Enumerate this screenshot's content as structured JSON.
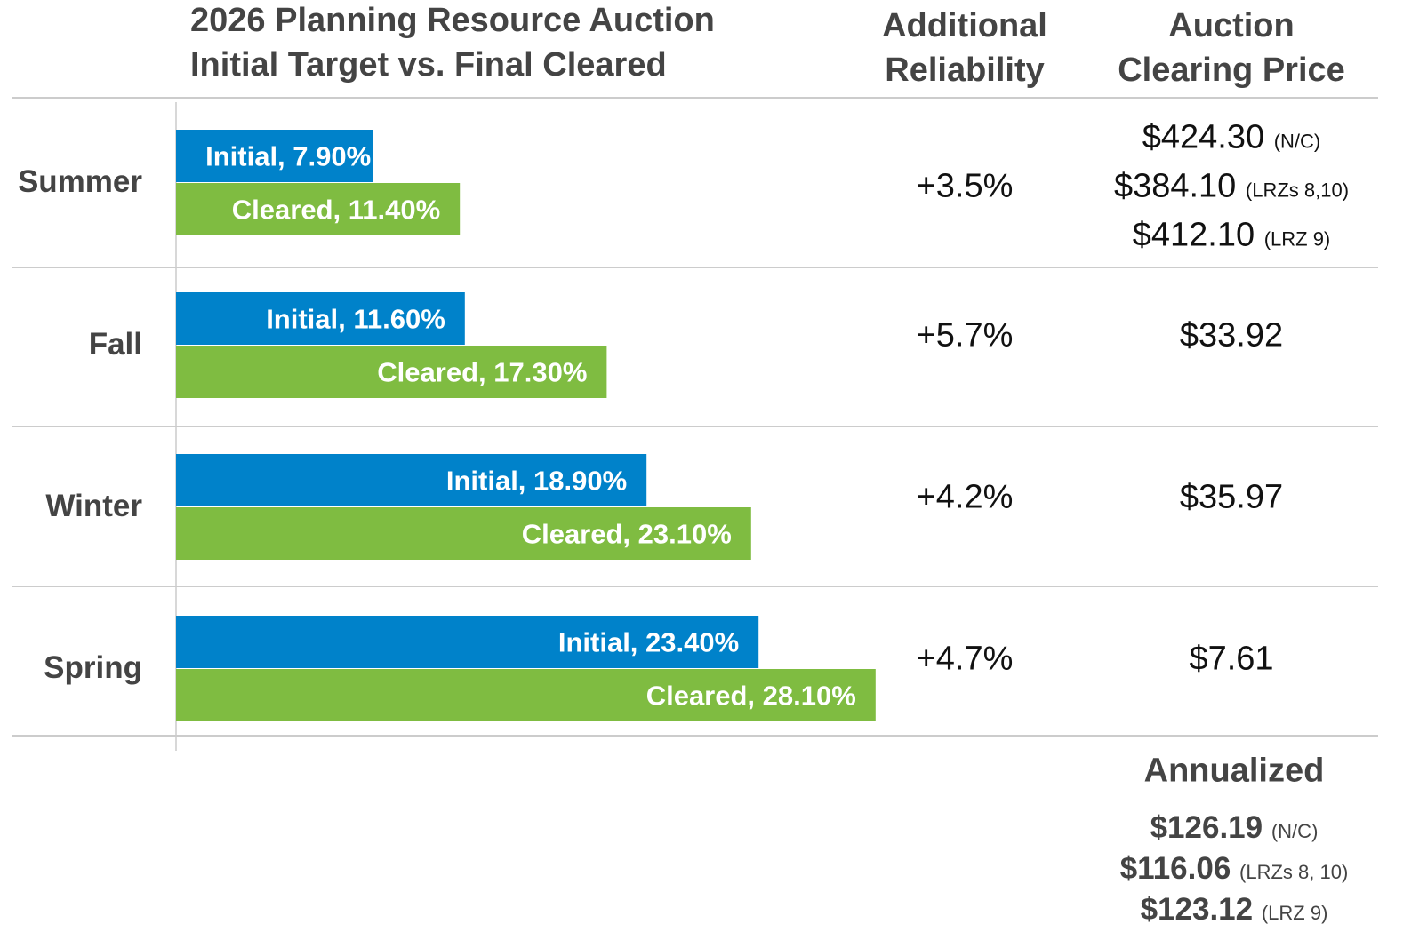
{
  "chart_data": {
    "type": "bar",
    "orientation": "horizontal",
    "title": "2026 Planning Resource Auction",
    "subtitle": "Initial Target vs. Final Cleared",
    "categories": [
      "Summer",
      "Fall",
      "Winter",
      "Spring"
    ],
    "series": [
      {
        "color": "#0082ca",
        "values": [
          7.9,
          11.6,
          18.9,
          23.4
        ],
        "value_labels": [
          "Initial, 7.90%",
          "Initial, 11.60%",
          "Initial, 18.90%",
          "Initial, 23.40%"
        ]
      },
      {
        "color": "#7fbc41",
        "values": [
          11.4,
          17.3,
          23.1,
          28.1
        ],
        "value_labels": [
          "Cleared, 11.40%",
          "Cleared, 17.30%",
          "Cleared, 23.10%",
          "Cleared, 28.10%"
        ]
      }
    ],
    "xlim": [
      0,
      30
    ]
  },
  "table": {
    "columns": [
      "Additional Reliability",
      "Auction Clearing Price"
    ],
    "reliability": [
      "+3.5%",
      "+5.7%",
      "+4.2%",
      "+4.7%"
    ],
    "clearing_prices": [
      [
        {
          "price": "$424.30",
          "note": "(N/C)"
        },
        {
          "price": "$384.10",
          "note": "(LRZs 8,10)"
        },
        {
          "price": "$412.10",
          "note": "(LRZ 9)"
        }
      ],
      [
        {
          "price": "$33.92"
        }
      ],
      [
        {
          "price": "$35.97"
        }
      ],
      [
        {
          "price": "$7.61"
        }
      ]
    ]
  },
  "annualized": {
    "title": "Annualized",
    "prices": [
      {
        "price": "$126.19",
        "note": "(N/C)"
      },
      {
        "price": "$116.06",
        "note": "(LRZs 8, 10)"
      },
      {
        "price": "$123.12",
        "note": "(LRZ 9)"
      }
    ]
  }
}
